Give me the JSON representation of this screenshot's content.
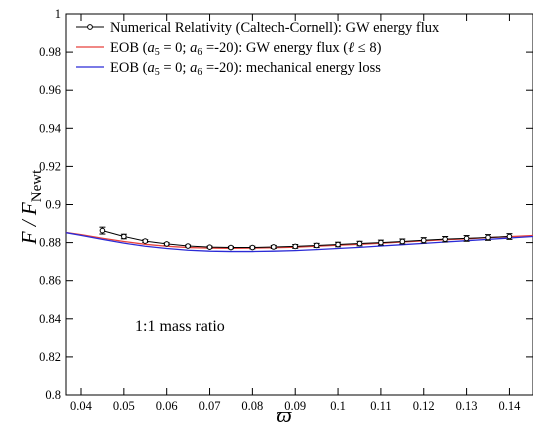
{
  "chart_data": {
    "type": "line",
    "xlabel": "ϖ",
    "ylabel": "F / F",
    "ylabel_subscript": "Newt",
    "xlim": [
      0.0365,
      0.1455
    ],
    "ylim": [
      0.8,
      1.0
    ],
    "x_ticks": [
      "0.04",
      "0.05",
      "0.06",
      "0.07",
      "0.08",
      "0.09",
      "0.1",
      "0.11",
      "0.12",
      "0.13",
      "0.14"
    ],
    "x_tick_values": [
      0.04,
      0.05,
      0.06,
      0.07,
      0.08,
      0.09,
      0.1,
      0.11,
      0.12,
      0.13,
      0.14
    ],
    "y_ticks": [
      "0.8",
      "0.82",
      "0.84",
      "0.86",
      "0.88",
      "0.9",
      "0.92",
      "0.94",
      "0.96",
      "0.98",
      "1"
    ],
    "y_tick_values": [
      0.8,
      0.82,
      0.84,
      0.86,
      0.88,
      0.9,
      0.92,
      0.94,
      0.96,
      0.98,
      1.0
    ],
    "annotation": "1:1 mass ratio",
    "legend_position": "top-left",
    "series": [
      {
        "name": "Numerical Relativity (Caltech-Cornell): GW energy flux",
        "style": "markers-errorbars",
        "color": "#000000",
        "x": [
          0.045,
          0.05,
          0.055,
          0.06,
          0.065,
          0.07,
          0.075,
          0.08,
          0.085,
          0.09,
          0.095,
          0.1,
          0.105,
          0.11,
          0.115,
          0.12,
          0.125,
          0.13,
          0.135,
          0.14
        ],
        "y": [
          0.8863,
          0.8832,
          0.8808,
          0.8793,
          0.8782,
          0.8776,
          0.8774,
          0.8774,
          0.8777,
          0.878,
          0.8785,
          0.879,
          0.8795,
          0.88,
          0.8806,
          0.8812,
          0.8818,
          0.8822,
          0.8827,
          0.8832
        ],
        "err": [
          0.0018,
          0.0012,
          0.0007,
          0.0006,
          0.0005,
          0.0005,
          0.0006,
          0.0007,
          0.0008,
          0.001,
          0.0011,
          0.0012,
          0.0012,
          0.0013,
          0.0013,
          0.0014,
          0.0014,
          0.0015,
          0.0015,
          0.0015
        ]
      },
      {
        "name": "EOB (a5 = 0; a6 =-20): GW energy flux (ℓ ≤ 8)",
        "legend_parts": {
          "a": "EOB (",
          "b": " = 0; ",
          "c": " =-20): GW energy flux (",
          "d": " ≤ 8)",
          "v1": "a",
          "s1": "5",
          "v2": "a",
          "s2": "6",
          "v3": "ℓ"
        },
        "style": "line",
        "color": "#e8413c",
        "x": [
          0.0365,
          0.04,
          0.045,
          0.05,
          0.055,
          0.06,
          0.065,
          0.07,
          0.075,
          0.08,
          0.085,
          0.09,
          0.095,
          0.1,
          0.105,
          0.11,
          0.115,
          0.12,
          0.125,
          0.13,
          0.135,
          0.14,
          0.1455
        ],
        "y": [
          0.8853,
          0.8842,
          0.8823,
          0.8806,
          0.8791,
          0.8781,
          0.8774,
          0.8771,
          0.877,
          0.8771,
          0.8773,
          0.8776,
          0.8781,
          0.8786,
          0.8791,
          0.8797,
          0.8803,
          0.8809,
          0.8815,
          0.882,
          0.8826,
          0.8831,
          0.8837
        ]
      },
      {
        "name": "EOB (a5 = 0; a6 =-20): mechanical energy loss",
        "legend_parts": {
          "a": "EOB (",
          "b": " = 0; ",
          "c": " =-20): mechanical energy loss",
          "v1": "a",
          "s1": "5",
          "v2": "a",
          "s2": "6"
        },
        "style": "line",
        "color": "#2b2bd6",
        "x": [
          0.0365,
          0.04,
          0.045,
          0.05,
          0.055,
          0.06,
          0.065,
          0.07,
          0.075,
          0.08,
          0.085,
          0.09,
          0.095,
          0.1,
          0.105,
          0.11,
          0.115,
          0.12,
          0.125,
          0.13,
          0.135,
          0.14,
          0.1455
        ],
        "y": [
          0.8852,
          0.8838,
          0.8817,
          0.8797,
          0.8781,
          0.8769,
          0.876,
          0.8755,
          0.8753,
          0.8753,
          0.8755,
          0.8758,
          0.8763,
          0.8769,
          0.8775,
          0.8782,
          0.8789,
          0.8796,
          0.8803,
          0.881,
          0.8817,
          0.8824,
          0.8832
        ]
      }
    ]
  }
}
